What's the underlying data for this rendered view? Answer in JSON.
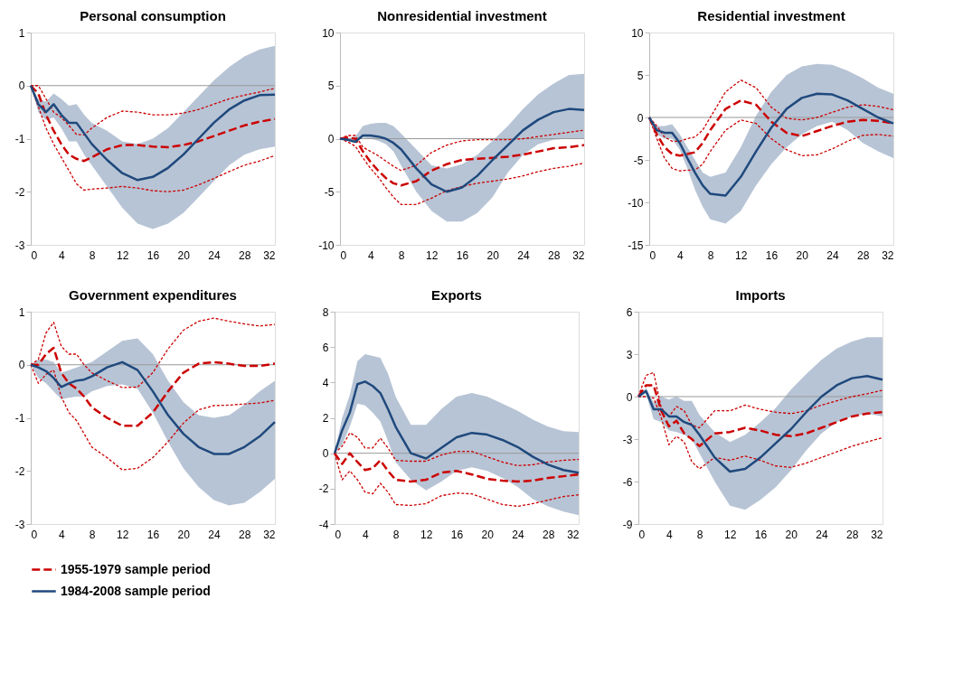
{
  "chart_data": [
    {
      "type": "line",
      "title": "Personal consumption",
      "x": [
        0,
        1,
        2,
        3,
        4,
        5,
        6,
        7,
        8,
        10,
        12,
        14,
        16,
        18,
        20,
        22,
        24,
        26,
        28,
        30,
        32
      ],
      "xlim": [
        0,
        32
      ],
      "xticks": [
        0,
        4,
        8,
        12,
        16,
        20,
        24,
        28,
        32
      ],
      "ylim": [
        -3,
        1
      ],
      "yticks": [
        -3,
        -2,
        -1,
        0,
        1
      ],
      "grid": false,
      "legend": "bottom",
      "ref_lines": [
        {
          "axis": "y",
          "value": 0,
          "color": "#999999"
        }
      ],
      "series": [
        {
          "name": "1955-1979 sample period",
          "color": "#cc0000",
          "line_style": "dashed",
          "values": [
            0,
            -0.15,
            -0.55,
            -0.85,
            -1.1,
            -1.3,
            -1.38,
            -1.42,
            -1.35,
            -1.2,
            -1.12,
            -1.12,
            -1.15,
            -1.16,
            -1.12,
            -1.05,
            -0.95,
            -0.85,
            -0.75,
            -0.68,
            -0.63
          ]
        },
        {
          "color": "#cc0000",
          "line_style": "dotted",
          "values": [
            0,
            0,
            -0.25,
            -0.5,
            -0.6,
            -0.75,
            -0.92,
            -0.93,
            -0.8,
            -0.6,
            -0.48,
            -0.5,
            -0.55,
            -0.55,
            -0.52,
            -0.45,
            -0.35,
            -0.25,
            -0.18,
            -0.12,
            -0.05
          ]
        },
        {
          "color": "#cc0000",
          "line_style": "dotted",
          "values": [
            0,
            -0.4,
            -0.8,
            -1.1,
            -1.35,
            -1.6,
            -1.85,
            -1.97,
            -1.95,
            -1.93,
            -1.9,
            -1.93,
            -1.98,
            -2.0,
            -1.97,
            -1.87,
            -1.75,
            -1.62,
            -1.5,
            -1.42,
            -1.32
          ]
        },
        {
          "name": "1984-2008 sample period",
          "color": "#1f497d",
          "line_style": "solid",
          "values": [
            0,
            -0.35,
            -0.5,
            -0.35,
            -0.55,
            -0.7,
            -0.7,
            -0.9,
            -1.1,
            -1.4,
            -1.65,
            -1.78,
            -1.72,
            -1.55,
            -1.3,
            -1.0,
            -0.7,
            -0.45,
            -0.28,
            -0.18,
            -0.17
          ],
          "lower": [
            0,
            -0.5,
            -0.65,
            -0.6,
            -0.8,
            -1.05,
            -1.05,
            -1.3,
            -1.5,
            -1.9,
            -2.3,
            -2.6,
            -2.7,
            -2.6,
            -2.4,
            -2.1,
            -1.8,
            -1.5,
            -1.3,
            -1.2,
            -1.15
          ],
          "upper": [
            0,
            -0.25,
            -0.3,
            -0.15,
            -0.25,
            -0.38,
            -0.35,
            -0.55,
            -0.7,
            -0.85,
            -1.05,
            -1.1,
            -1.0,
            -0.8,
            -0.5,
            -0.2,
            0.1,
            0.35,
            0.55,
            0.68,
            0.75
          ]
        }
      ]
    },
    {
      "type": "line",
      "title": "Nonresidential investment",
      "x": [
        0,
        1,
        2,
        3,
        4,
        5,
        6,
        7,
        8,
        10,
        12,
        14,
        16,
        18,
        20,
        22,
        24,
        26,
        28,
        30,
        32
      ],
      "xlim": [
        0,
        32
      ],
      "xticks": [
        0,
        4,
        8,
        12,
        16,
        20,
        24,
        28,
        32
      ],
      "ylim": [
        -10,
        10
      ],
      "yticks": [
        -10,
        -5,
        0,
        5,
        10
      ],
      "grid": false,
      "legend": "bottom",
      "ref_lines": [
        {
          "axis": "y",
          "value": 0,
          "color": "#999999"
        }
      ],
      "series": [
        {
          "name": "1955-1979 sample period",
          "color": "#cc0000",
          "line_style": "dashed",
          "values": [
            0,
            0.1,
            0,
            -1.2,
            -2.2,
            -3.0,
            -3.7,
            -4.2,
            -4.4,
            -4.0,
            -3.0,
            -2.4,
            -2.0,
            -1.9,
            -1.8,
            -1.7,
            -1.5,
            -1.2,
            -0.9,
            -0.8,
            -0.6
          ]
        },
        {
          "color": "#cc0000",
          "line_style": "dotted",
          "values": [
            0,
            0.3,
            0.3,
            -0.8,
            -1.2,
            -1.6,
            -2.1,
            -2.6,
            -3.0,
            -2.5,
            -1.3,
            -0.6,
            -0.2,
            -0.1,
            -0.1,
            -0.1,
            0,
            0.2,
            0.4,
            0.6,
            0.8
          ]
        },
        {
          "color": "#cc0000",
          "line_style": "dotted",
          "values": [
            0,
            -0.3,
            -0.7,
            -1.8,
            -2.8,
            -3.6,
            -4.6,
            -5.5,
            -6.2,
            -6.2,
            -5.6,
            -4.9,
            -4.5,
            -4.2,
            -4.0,
            -3.8,
            -3.5,
            -3.1,
            -2.8,
            -2.6,
            -2.3
          ]
        },
        {
          "name": "1984-2008 sample period",
          "color": "#1f497d",
          "line_style": "solid",
          "values": [
            0,
            -0.1,
            -0.3,
            0.3,
            0.3,
            0.2,
            0,
            -0.4,
            -1.0,
            -2.8,
            -4.3,
            -5.0,
            -4.6,
            -3.5,
            -2.0,
            -0.6,
            0.8,
            1.8,
            2.5,
            2.8,
            2.7
          ],
          "lower": [
            0,
            -0.1,
            -0.3,
            0.1,
            0,
            -0.2,
            -0.5,
            -1.2,
            -2.5,
            -5.0,
            -6.8,
            -7.8,
            -7.8,
            -7.0,
            -5.5,
            -3.2,
            -1.5,
            -0.5,
            -0.1,
            0,
            0
          ],
          "upper": [
            0,
            0,
            0.2,
            1.2,
            1.4,
            1.5,
            1.5,
            1.2,
            0.5,
            -1.0,
            -2.5,
            -2.8,
            -2.4,
            -1.5,
            -0.2,
            1.2,
            2.8,
            4.2,
            5.2,
            6.0,
            6.1
          ]
        }
      ]
    },
    {
      "type": "line",
      "title": "Residential investment",
      "x": [
        0,
        1,
        2,
        3,
        4,
        5,
        6,
        7,
        8,
        10,
        12,
        14,
        16,
        18,
        20,
        22,
        24,
        26,
        28,
        30,
        32
      ],
      "xlim": [
        0,
        32
      ],
      "xticks": [
        0,
        4,
        8,
        12,
        16,
        20,
        24,
        28,
        32
      ],
      "ylim": [
        -15,
        10
      ],
      "yticks": [
        -15,
        -10,
        -5,
        0,
        5,
        10
      ],
      "grid": false,
      "legend": "bottom",
      "ref_lines": [
        {
          "axis": "y",
          "value": 0,
          "color": "#999999"
        }
      ],
      "series": [
        {
          "name": "1955-1979 sample period",
          "color": "#cc0000",
          "line_style": "dashed",
          "values": [
            0,
            -2.0,
            -3.5,
            -4.3,
            -4.5,
            -4.3,
            -4.1,
            -3.0,
            -1.5,
            1.0,
            2.0,
            1.5,
            -0.5,
            -1.8,
            -2.2,
            -1.6,
            -1.0,
            -0.5,
            -0.3,
            -0.4,
            -0.7
          ]
        },
        {
          "color": "#cc0000",
          "line_style": "dotted",
          "values": [
            0,
            -1.0,
            -2.3,
            -2.8,
            -2.8,
            -2.5,
            -2.3,
            -1.5,
            0,
            3.0,
            4.4,
            3.5,
            1.2,
            -0.1,
            -0.3,
            0,
            0.6,
            1.2,
            1.5,
            1.3,
            0.9
          ]
        },
        {
          "color": "#cc0000",
          "line_style": "dotted",
          "values": [
            0,
            -2.5,
            -4.8,
            -6.0,
            -6.3,
            -6.2,
            -6.2,
            -5.5,
            -4.0,
            -1.5,
            -0.3,
            -0.7,
            -2.5,
            -3.8,
            -4.5,
            -4.4,
            -3.7,
            -2.8,
            -2.1,
            -2.0,
            -2.2
          ]
        },
        {
          "name": "1984-2008 sample period",
          "color": "#1f497d",
          "line_style": "solid",
          "values": [
            0,
            -1.5,
            -1.8,
            -1.8,
            -3.0,
            -4.8,
            -6.5,
            -8.0,
            -9.0,
            -9.2,
            -7.0,
            -4.0,
            -1.2,
            1.0,
            2.3,
            2.8,
            2.7,
            2.0,
            1.0,
            0,
            -0.7
          ],
          "lower": [
            0,
            -2.0,
            -2.5,
            -2.5,
            -3.8,
            -6.0,
            -8.5,
            -10.5,
            -12,
            -12.5,
            -11,
            -8.0,
            -5.5,
            -3.5,
            -2.0,
            -1.0,
            -0.5,
            -1.5,
            -3,
            -4,
            -4.8
          ],
          "upper": [
            0,
            -1.0,
            -1.0,
            -0.8,
            -2.0,
            -3.5,
            -5.0,
            -6.5,
            -7.0,
            -6.5,
            -3.5,
            0.2,
            3.0,
            5.0,
            6.0,
            6.3,
            6.2,
            5.5,
            4.6,
            3.5,
            2.8
          ]
        }
      ]
    },
    {
      "type": "line",
      "title": "Government expenditures",
      "x": [
        0,
        1,
        2,
        3,
        4,
        5,
        6,
        7,
        8,
        10,
        12,
        14,
        16,
        18,
        20,
        22,
        24,
        26,
        28,
        30,
        32
      ],
      "xlim": [
        0,
        32
      ],
      "xticks": [
        0,
        4,
        8,
        12,
        16,
        20,
        24,
        28,
        32
      ],
      "ylim": [
        -3,
        1
      ],
      "yticks": [
        -3,
        -2,
        -1,
        0,
        1
      ],
      "grid": false,
      "legend": "bottom",
      "ref_lines": [
        {
          "axis": "y",
          "value": 0,
          "color": "#999999"
        }
      ],
      "series": [
        {
          "name": "1955-1979 sample period",
          "color": "#cc0000",
          "line_style": "dashed",
          "values": [
            0,
            0,
            0.2,
            0.32,
            -0.15,
            -0.35,
            -0.45,
            -0.6,
            -0.8,
            -1.0,
            -1.15,
            -1.15,
            -0.9,
            -0.5,
            -0.15,
            0.02,
            0.05,
            0.02,
            -0.02,
            -0.02,
            0.02
          ]
        },
        {
          "color": "#cc0000",
          "line_style": "dotted",
          "values": [
            0,
            0.1,
            0.6,
            0.8,
            0.35,
            0.2,
            0.2,
            0,
            -0.15,
            -0.3,
            -0.43,
            -0.42,
            -0.15,
            0.3,
            0.65,
            0.82,
            0.88,
            0.82,
            0.77,
            0.73,
            0.76
          ]
        },
        {
          "color": "#cc0000",
          "line_style": "dotted",
          "values": [
            0,
            -0.35,
            -0.18,
            -0.1,
            -0.6,
            -0.9,
            -1.05,
            -1.3,
            -1.55,
            -1.75,
            -1.98,
            -1.95,
            -1.75,
            -1.45,
            -1.1,
            -0.85,
            -0.77,
            -0.76,
            -0.74,
            -0.72,
            -0.67
          ]
        },
        {
          "name": "1984-2008 sample period",
          "color": "#1f497d",
          "line_style": "solid",
          "values": [
            0,
            -0.05,
            -0.12,
            -0.25,
            -0.42,
            -0.35,
            -0.3,
            -0.28,
            -0.22,
            -0.05,
            0.05,
            -0.1,
            -0.5,
            -0.95,
            -1.3,
            -1.55,
            -1.68,
            -1.68,
            -1.55,
            -1.35,
            -1.08
          ],
          "lower": [
            0,
            -0.25,
            -0.35,
            -0.5,
            -0.65,
            -0.62,
            -0.6,
            -0.6,
            -0.5,
            -0.4,
            -0.37,
            -0.45,
            -0.9,
            -1.45,
            -1.95,
            -2.3,
            -2.55,
            -2.65,
            -2.6,
            -2.4,
            -2.15
          ],
          "upper": [
            0,
            0.1,
            0.1,
            0.05,
            -0.15,
            -0.1,
            -0.05,
            0,
            0.05,
            0.25,
            0.45,
            0.5,
            0.2,
            -0.3,
            -0.7,
            -0.95,
            -1.0,
            -0.95,
            -0.75,
            -0.5,
            -0.3
          ]
        }
      ]
    },
    {
      "type": "line",
      "title": "Exports",
      "x": [
        0,
        1,
        2,
        3,
        4,
        5,
        6,
        7,
        8,
        10,
        12,
        14,
        16,
        18,
        20,
        22,
        24,
        26,
        28,
        30,
        32
      ],
      "xlim": [
        0,
        32
      ],
      "xticks": [
        0,
        4,
        8,
        12,
        16,
        20,
        24,
        28,
        32
      ],
      "ylim": [
        -4,
        8
      ],
      "yticks": [
        -4,
        -2,
        0,
        2,
        4,
        6,
        8
      ],
      "grid": false,
      "legend": "bottom",
      "ref_lines": [
        {
          "axis": "y",
          "value": 0,
          "color": "#999999"
        }
      ],
      "series": [
        {
          "name": "1955-1979 sample period",
          "color": "#cc0000",
          "line_style": "dashed",
          "values": [
            0,
            -0.6,
            0,
            -0.5,
            -0.95,
            -0.85,
            -0.4,
            -1.0,
            -1.5,
            -1.6,
            -1.5,
            -1.1,
            -1.0,
            -1.2,
            -1.45,
            -1.55,
            -1.6,
            -1.55,
            -1.4,
            -1.3,
            -1.2
          ]
        },
        {
          "color": "#cc0000",
          "line_style": "dotted",
          "values": [
            0,
            0.4,
            1.15,
            0.9,
            0.3,
            0.3,
            0.85,
            0.3,
            -0.4,
            -0.45,
            -0.45,
            -0.1,
            0.1,
            0.1,
            -0.2,
            -0.5,
            -0.7,
            -0.65,
            -0.5,
            -0.4,
            -0.35
          ]
        },
        {
          "color": "#cc0000",
          "line_style": "dotted",
          "values": [
            0,
            -1.5,
            -1.0,
            -1.5,
            -2.2,
            -2.3,
            -1.7,
            -2.2,
            -2.9,
            -2.95,
            -2.85,
            -2.4,
            -2.25,
            -2.3,
            -2.6,
            -2.9,
            -3.0,
            -2.85,
            -2.65,
            -2.45,
            -2.35
          ]
        },
        {
          "name": "1984-2008 sample period",
          "color": "#1f497d",
          "line_style": "solid",
          "values": [
            0,
            1.3,
            2.3,
            3.9,
            4.05,
            3.8,
            3.4,
            2.5,
            1.5,
            0,
            -0.3,
            0.3,
            0.9,
            1.15,
            1.05,
            0.75,
            0.35,
            -0.2,
            -0.65,
            -0.95,
            -1.1
          ],
          "lower": [
            0,
            0.5,
            1.5,
            2.8,
            2.7,
            2.3,
            1.8,
            0.7,
            -0.5,
            -1.5,
            -2.1,
            -1.6,
            -1.0,
            -0.8,
            -1.0,
            -1.4,
            -1.9,
            -2.6,
            -3.0,
            -3.3,
            -3.5
          ],
          "upper": [
            0,
            2.0,
            3.3,
            5.2,
            5.6,
            5.5,
            5.4,
            4.5,
            3.2,
            1.6,
            1.6,
            2.5,
            3.2,
            3.4,
            3.2,
            2.8,
            2.4,
            1.9,
            1.5,
            1.25,
            1.2
          ]
        }
      ]
    },
    {
      "type": "line",
      "title": "Imports",
      "x": [
        0,
        1,
        2,
        3,
        4,
        5,
        6,
        7,
        8,
        10,
        12,
        14,
        16,
        18,
        20,
        22,
        24,
        26,
        28,
        30,
        32
      ],
      "xlim": [
        0,
        32
      ],
      "xticks": [
        0,
        4,
        8,
        12,
        16,
        20,
        24,
        28,
        32
      ],
      "ylim": [
        -9,
        6
      ],
      "yticks": [
        -9,
        -6,
        -3,
        0,
        3,
        6
      ],
      "grid": false,
      "legend": "bottom",
      "ref_lines": [
        {
          "axis": "y",
          "value": 0,
          "color": "#999999"
        }
      ],
      "series": [
        {
          "name": "1955-1979 sample period",
          "color": "#cc0000",
          "line_style": "dashed",
          "values": [
            0,
            0.8,
            0.8,
            -1.0,
            -2.1,
            -1.7,
            -2.6,
            -3.0,
            -3.5,
            -2.6,
            -2.5,
            -2.2,
            -2.4,
            -2.7,
            -2.8,
            -2.6,
            -2.2,
            -1.8,
            -1.4,
            -1.2,
            -1.1
          ]
        },
        {
          "color": "#cc0000",
          "line_style": "dotted",
          "values": [
            0,
            1.5,
            1.7,
            -0.8,
            -1.4,
            -0.7,
            -1.0,
            -2.0,
            -2.2,
            -1.0,
            -1.0,
            -0.6,
            -0.9,
            -1.1,
            -1.2,
            -1.0,
            -0.6,
            -0.3,
            0,
            0.2,
            0.45
          ]
        },
        {
          "color": "#cc0000",
          "line_style": "dotted",
          "values": [
            0,
            0,
            -0.1,
            -1.5,
            -3.4,
            -2.8,
            -3.2,
            -4.6,
            -5.1,
            -4.3,
            -4.5,
            -4.2,
            -4.5,
            -4.9,
            -5.0,
            -4.7,
            -4.3,
            -3.9,
            -3.5,
            -3.2,
            -2.9
          ]
        },
        {
          "name": "1984-2008 sample period",
          "color": "#1f497d",
          "line_style": "solid",
          "values": [
            0,
            0.4,
            -0.9,
            -0.9,
            -1.4,
            -1.4,
            -1.8,
            -2.0,
            -2.7,
            -4.3,
            -5.3,
            -5.1,
            -4.3,
            -3.3,
            -2.3,
            -1.1,
            0,
            0.8,
            1.3,
            1.45,
            1.2
          ],
          "lower": [
            0,
            0.2,
            -1.6,
            -1.8,
            -2.4,
            -2.5,
            -2.7,
            -3.0,
            -4.0,
            -6.0,
            -7.7,
            -8.0,
            -7.3,
            -6.4,
            -5.2,
            -3.8,
            -2.6,
            -1.8,
            -1.4,
            -1.2,
            -1.4
          ],
          "upper": [
            0,
            0.6,
            -0.4,
            0,
            -0.2,
            0,
            -0.3,
            -0.3,
            -1.3,
            -2.5,
            -3.2,
            -2.7,
            -1.8,
            -0.8,
            0.5,
            1.6,
            2.6,
            3.4,
            3.9,
            4.2,
            4.2
          ]
        }
      ]
    }
  ]
}
